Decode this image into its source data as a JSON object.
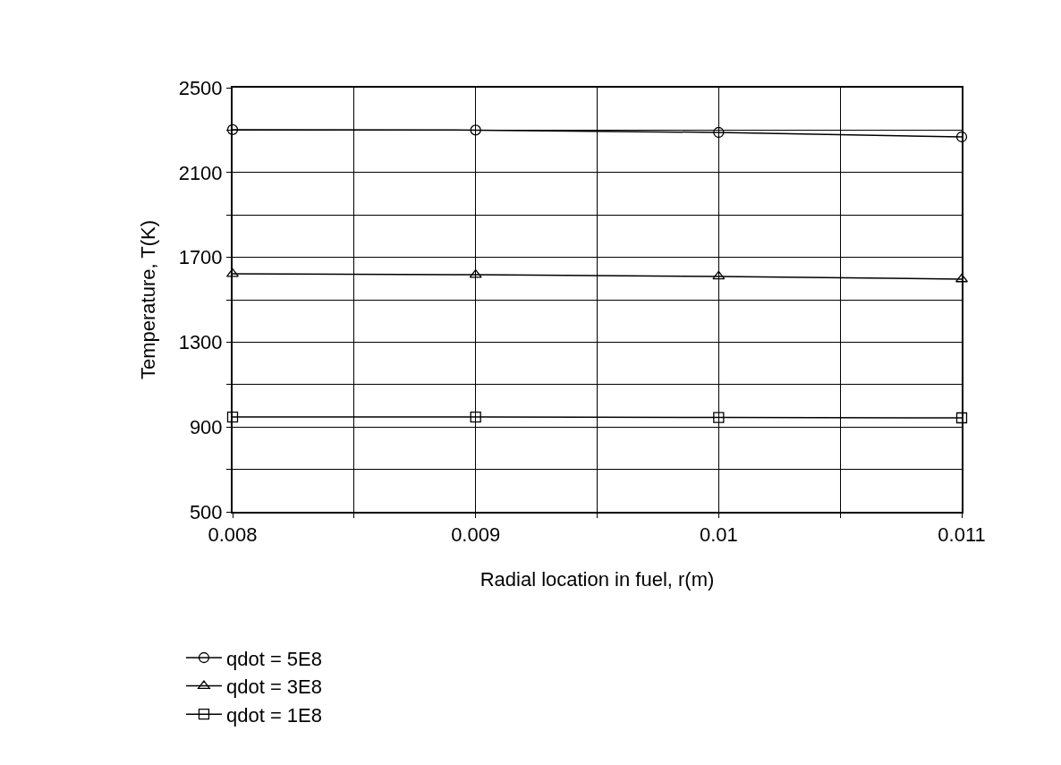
{
  "chart_data": {
    "type": "line",
    "xlabel": "Radial location in fuel, r(m)",
    "ylabel": "Temperature, T(K)",
    "x": [
      0.008,
      0.009,
      0.01,
      0.011
    ],
    "series": [
      {
        "name": "qdot = 5E8",
        "color": "#000000",
        "marker": "circle",
        "values": [
          2302,
          2300,
          2289,
          2268
        ]
      },
      {
        "name": "qdot = 3E8",
        "color": "#000000",
        "marker": "triangle",
        "values": [
          1622,
          1618,
          1610,
          1597
        ]
      },
      {
        "name": "qdot = 1E8",
        "color": "#000000",
        "marker": "square",
        "values": [
          947,
          947,
          945,
          943
        ]
      }
    ],
    "xlim": [
      0.008,
      0.011
    ],
    "xticks": [
      0.008,
      {
        "value": 0.0085,
        "label": null
      },
      0.009,
      {
        "value": 0.0095,
        "label": null
      },
      0.01,
      {
        "value": 0.0105,
        "label": null
      },
      0.011
    ],
    "ylim": [
      500,
      2500
    ],
    "yticks": [
      500,
      {
        "value": 700,
        "label": null
      },
      900,
      {
        "value": 1100,
        "label": null
      },
      1300,
      {
        "value": 1500,
        "label": null
      },
      1700,
      {
        "value": 1900,
        "label": null
      },
      2100,
      {
        "value": 2300,
        "label": null
      },
      2500
    ],
    "grid": true,
    "legend": "bottom",
    "line_style": "solid"
  }
}
